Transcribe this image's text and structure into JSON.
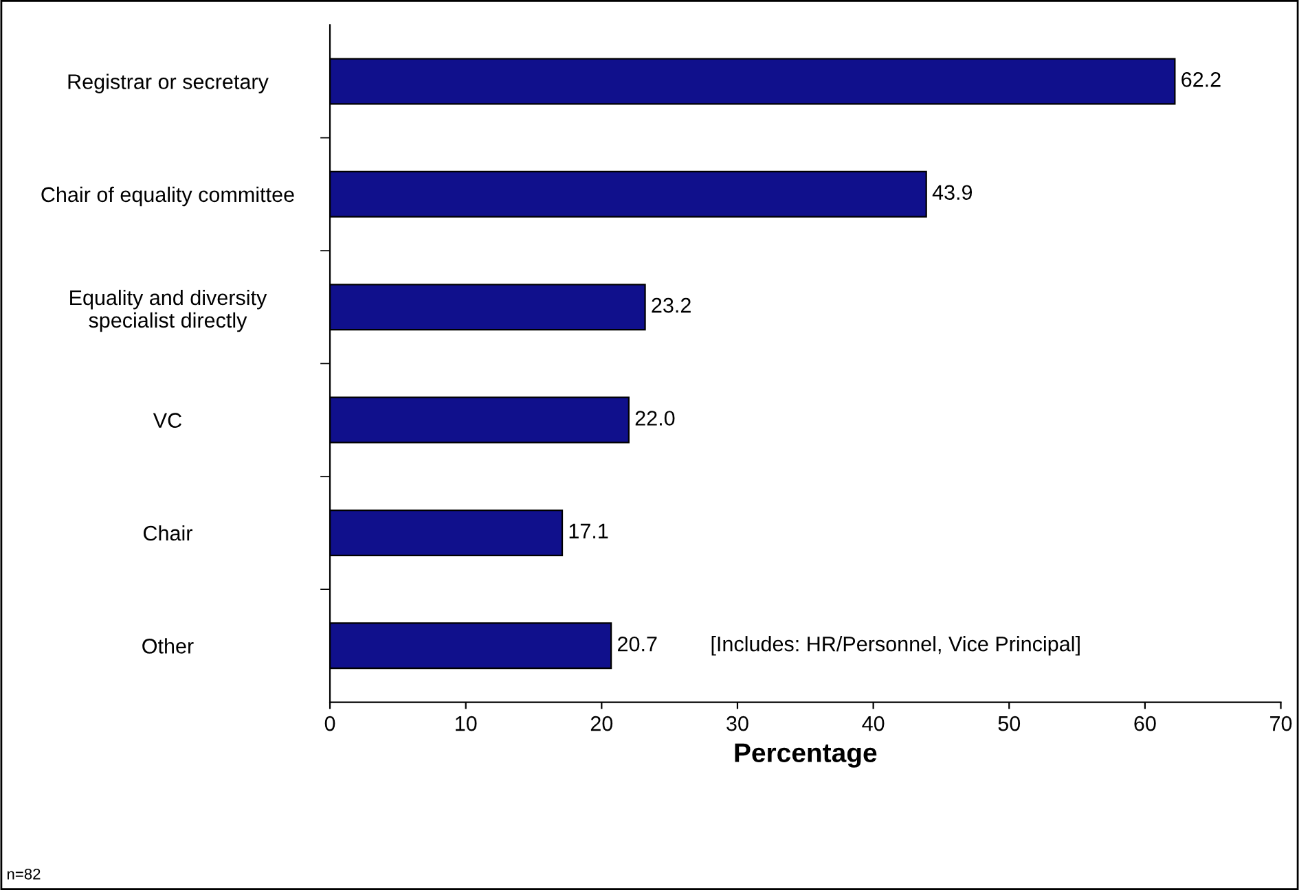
{
  "chart_data": {
    "type": "bar",
    "orientation": "horizontal",
    "xlabel": "Percentage",
    "categories": [
      "Registrar or secretary",
      "Chair of equality committee",
      "Equality and diversity\nspecialist directly",
      "VC",
      "Chair",
      "Other"
    ],
    "values": [
      62.2,
      43.9,
      23.2,
      22.0,
      17.1,
      20.7
    ],
    "value_labels": [
      "62.2",
      "43.9",
      "23.2",
      "22.0",
      "17.1",
      "20.7"
    ],
    "color": "#10108c",
    "xlim": [
      0,
      70
    ],
    "xticks": [
      0,
      10,
      20,
      30,
      40,
      50,
      60,
      70
    ],
    "grid": false,
    "legend": false,
    "annotations": [
      "[Includes: HR/Personnel, Vice Principal]",
      "n=82"
    ]
  }
}
